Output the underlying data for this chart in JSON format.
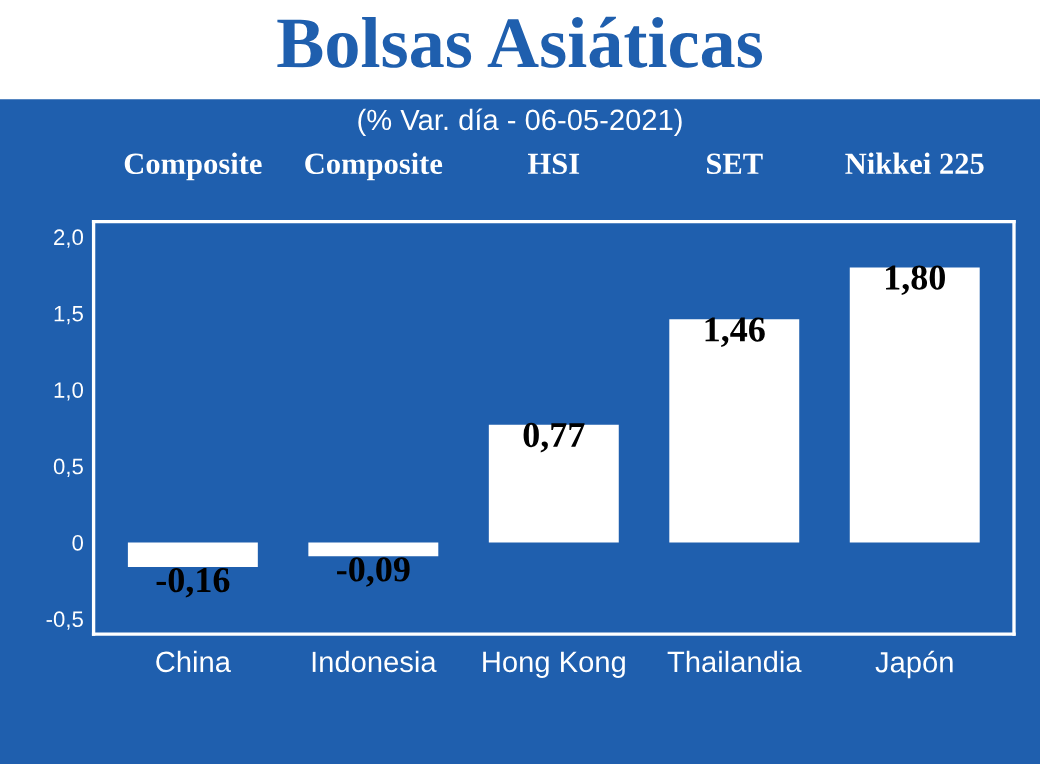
{
  "chart_data": {
    "type": "bar",
    "title": "Bolsas Asiáticas",
    "subtitle": "(% Var. día - 06-05-2021)",
    "categories": [
      "China",
      "Indonesia",
      "Hong Kong",
      "Thailandia",
      "Japón"
    ],
    "values": [
      -0.16,
      -0.09,
      0.77,
      1.46,
      1.8
    ],
    "value_labels": [
      "-0,16",
      "-0,09",
      "0,77",
      "1,46",
      "1,80"
    ],
    "color": "#ffffff",
    "annotations": [
      "Composite",
      "Composite",
      "HSI",
      "SET",
      "Nikkei 225"
    ],
    "ylim": [
      -0.6,
      2.1
    ],
    "yticks": [
      {
        "value": -0.5,
        "label": "-0,5"
      },
      {
        "value": 0,
        "label": "0"
      },
      {
        "value": 0.5,
        "label": "0,5"
      },
      {
        "value": 1.0,
        "label": "1,0"
      },
      {
        "value": 1.5,
        "label": "1,5"
      },
      {
        "value": 2.0,
        "label": "2,0"
      }
    ],
    "grid": false,
    "legend": false
  }
}
